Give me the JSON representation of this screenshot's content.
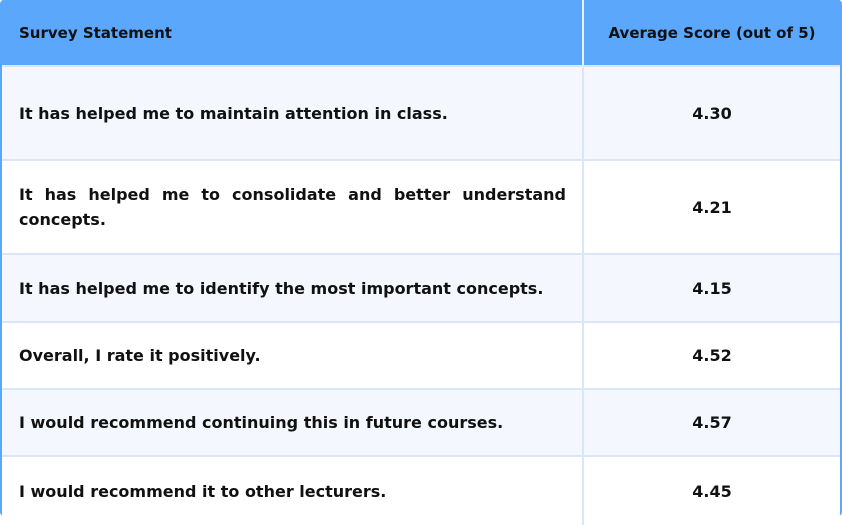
{
  "table": {
    "headers": {
      "statement": "Survey Statement",
      "score": "Average Score (out of 5)"
    },
    "rows": [
      {
        "statement": "It has helped me to maintain attention in class.",
        "score": "4.30"
      },
      {
        "statement": "It has helped me to consolidate and better understand concepts.",
        "score": "4.21"
      },
      {
        "statement": "It has helped me to identify the most important concepts.",
        "score": "4.15"
      },
      {
        "statement": "Overall, I rate it positively.",
        "score": "4.52"
      },
      {
        "statement": "I would recommend continuing this in future courses.",
        "score": "4.57"
      },
      {
        "statement": "I would recommend it to other lecturers.",
        "score": "4.45"
      }
    ]
  },
  "colors": {
    "header_bg": "#5aa7fc",
    "row_alt_bg": "#f4f8fe",
    "row_bg": "#ffffff",
    "divider": "#dbe7f8"
  }
}
